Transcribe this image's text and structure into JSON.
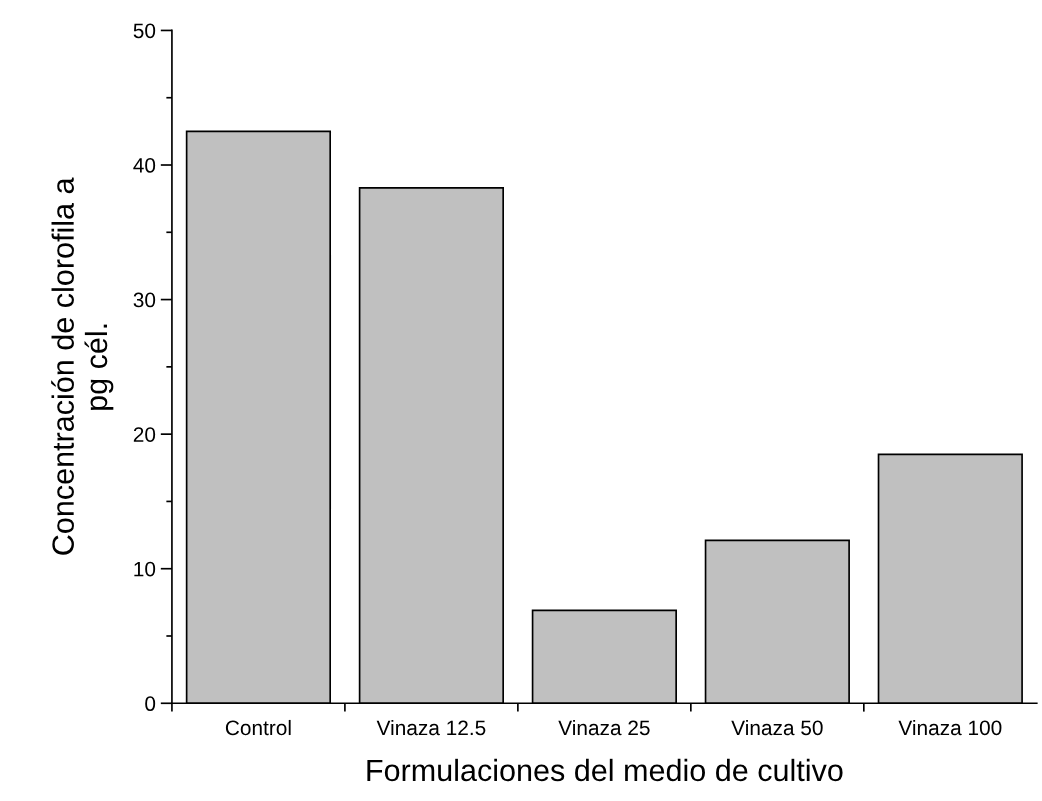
{
  "chart_data": {
    "type": "bar",
    "xlabel": "Formulaciones del medio de cultivo",
    "ylabel": "Concentración de clorofila a\npg cél.",
    "categories": [
      "Control",
      "Vinaza 12.5",
      "Vinaza 25",
      "Vinaza 50",
      "Vinaza 100"
    ],
    "values": [
      42.5,
      38.3,
      6.9,
      12.1,
      18.5
    ],
    "color": "#c0c0c0",
    "ylim": [
      0,
      50
    ],
    "yticks": [
      0,
      10,
      20,
      30,
      40,
      50
    ],
    "grid": false
  }
}
